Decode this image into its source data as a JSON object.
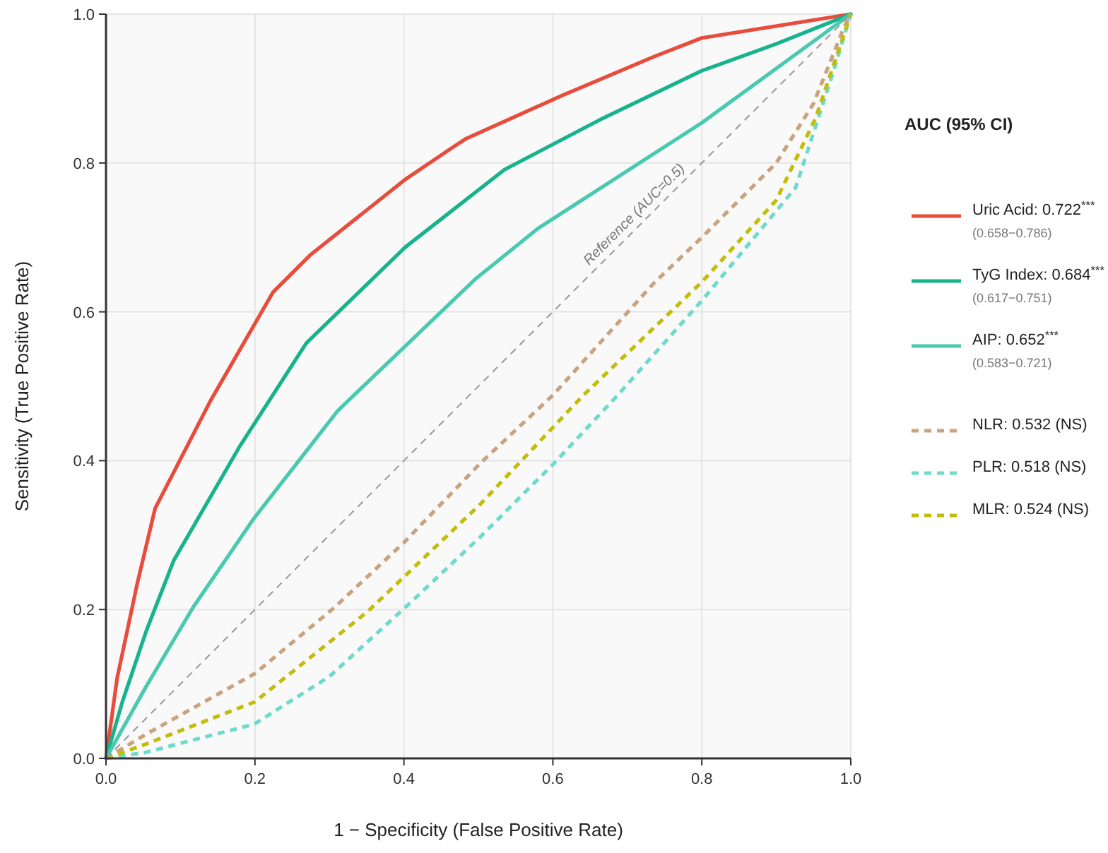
{
  "chart_data": {
    "type": "line",
    "xlabel": "1 − Specificity (False Positive Rate)",
    "ylabel": "Sensitivity (True Positive Rate)",
    "legend_title": "AUC (95% CI)",
    "legend": "right",
    "grid": true,
    "annotations": [
      {
        "text": "Reference (AUC=0.5)",
        "x": 0.72,
        "y": 0.72
      }
    ],
    "xlim": [
      0,
      1
    ],
    "ylim": [
      0,
      1
    ],
    "xticks": [
      {
        "value": 0,
        "label": "0.0"
      },
      0.2,
      0.4,
      0.6,
      0.8,
      {
        "value": 1,
        "label": "1.0"
      }
    ],
    "yticks": [
      {
        "value": 0,
        "label": "0.0"
      },
      0.2,
      0.4,
      0.6,
      0.8,
      {
        "value": 1,
        "label": "1.0"
      }
    ],
    "series": [
      {
        "name": "Uric Acid: 0.722$^{***}$\n(0.658−0.786)",
        "color": "#e74c3c",
        "line_style": "solid",
        "x": [
          0,
          0.015,
          0.042,
          0.066,
          0.14,
          0.224,
          0.275,
          0.402,
          0.467,
          0.484,
          0.611,
          0.736,
          0.8,
          1
        ],
        "values": [
          0,
          0.108,
          0.235,
          0.336,
          0.48,
          0.626,
          0.677,
          0.778,
          0.822,
          0.833,
          0.89,
          0.943,
          0.968,
          1
        ]
      },
      {
        "name": "TyG Index: 0.684$^{***}$\n(0.617−0.751)",
        "color": "#16b38c",
        "line_style": "solid",
        "x": [
          0,
          0.022,
          0.054,
          0.091,
          0.18,
          0.269,
          0.402,
          0.535,
          0.667,
          0.8,
          0.9,
          1
        ],
        "values": [
          0,
          0.076,
          0.171,
          0.266,
          0.42,
          0.558,
          0.687,
          0.791,
          0.86,
          0.924,
          0.96,
          1
        ]
      },
      {
        "name": "AIP: 0.652$^{***}$\n(0.583−0.721)",
        "color": "#48c9b0",
        "line_style": "solid",
        "x": [
          0,
          0.053,
          0.117,
          0.199,
          0.311,
          0.497,
          0.58,
          0.8,
          1
        ],
        "values": [
          0,
          0.095,
          0.203,
          0.323,
          0.467,
          0.645,
          0.712,
          0.854,
          1
        ]
      },
      {
        "name": "NLR: 0.532 (NS)",
        "color": "#c9a27e",
        "line_style": "dashed",
        "x": [
          0,
          0.053,
          0.2,
          0.307,
          0.4,
          0.503,
          0.6,
          0.736,
          0.8,
          0.9,
          0.95,
          0.99,
          1
        ],
        "values": [
          0,
          0.032,
          0.114,
          0.203,
          0.29,
          0.397,
          0.488,
          0.639,
          0.7,
          0.8,
          0.88,
          0.98,
          1
        ]
      },
      {
        "name": "PLR: 0.518 (NS)",
        "color": "#6fdacb",
        "line_style": "dashed",
        "x": [
          0,
          0.053,
          0.199,
          0.3,
          0.402,
          0.503,
          0.603,
          0.687,
          0.8,
          0.926,
          0.977,
          1
        ],
        "values": [
          0,
          0.008,
          0.046,
          0.11,
          0.203,
          0.298,
          0.398,
          0.488,
          0.615,
          0.767,
          0.924,
          1
        ]
      },
      {
        "name": "MLR: 0.524 (NS)",
        "color": "#c2bd0a",
        "line_style": "dashed",
        "x": [
          0,
          0.053,
          0.2,
          0.351,
          0.503,
          0.641,
          0.8,
          0.9,
          0.953,
          1
        ],
        "values": [
          0,
          0.019,
          0.076,
          0.197,
          0.342,
          0.488,
          0.64,
          0.75,
          0.861,
          1
        ]
      },
      {
        "color": "#999999",
        "line_style": "dashed",
        "x": [
          0,
          1
        ],
        "values": [
          0,
          1
        ]
      }
    ]
  }
}
